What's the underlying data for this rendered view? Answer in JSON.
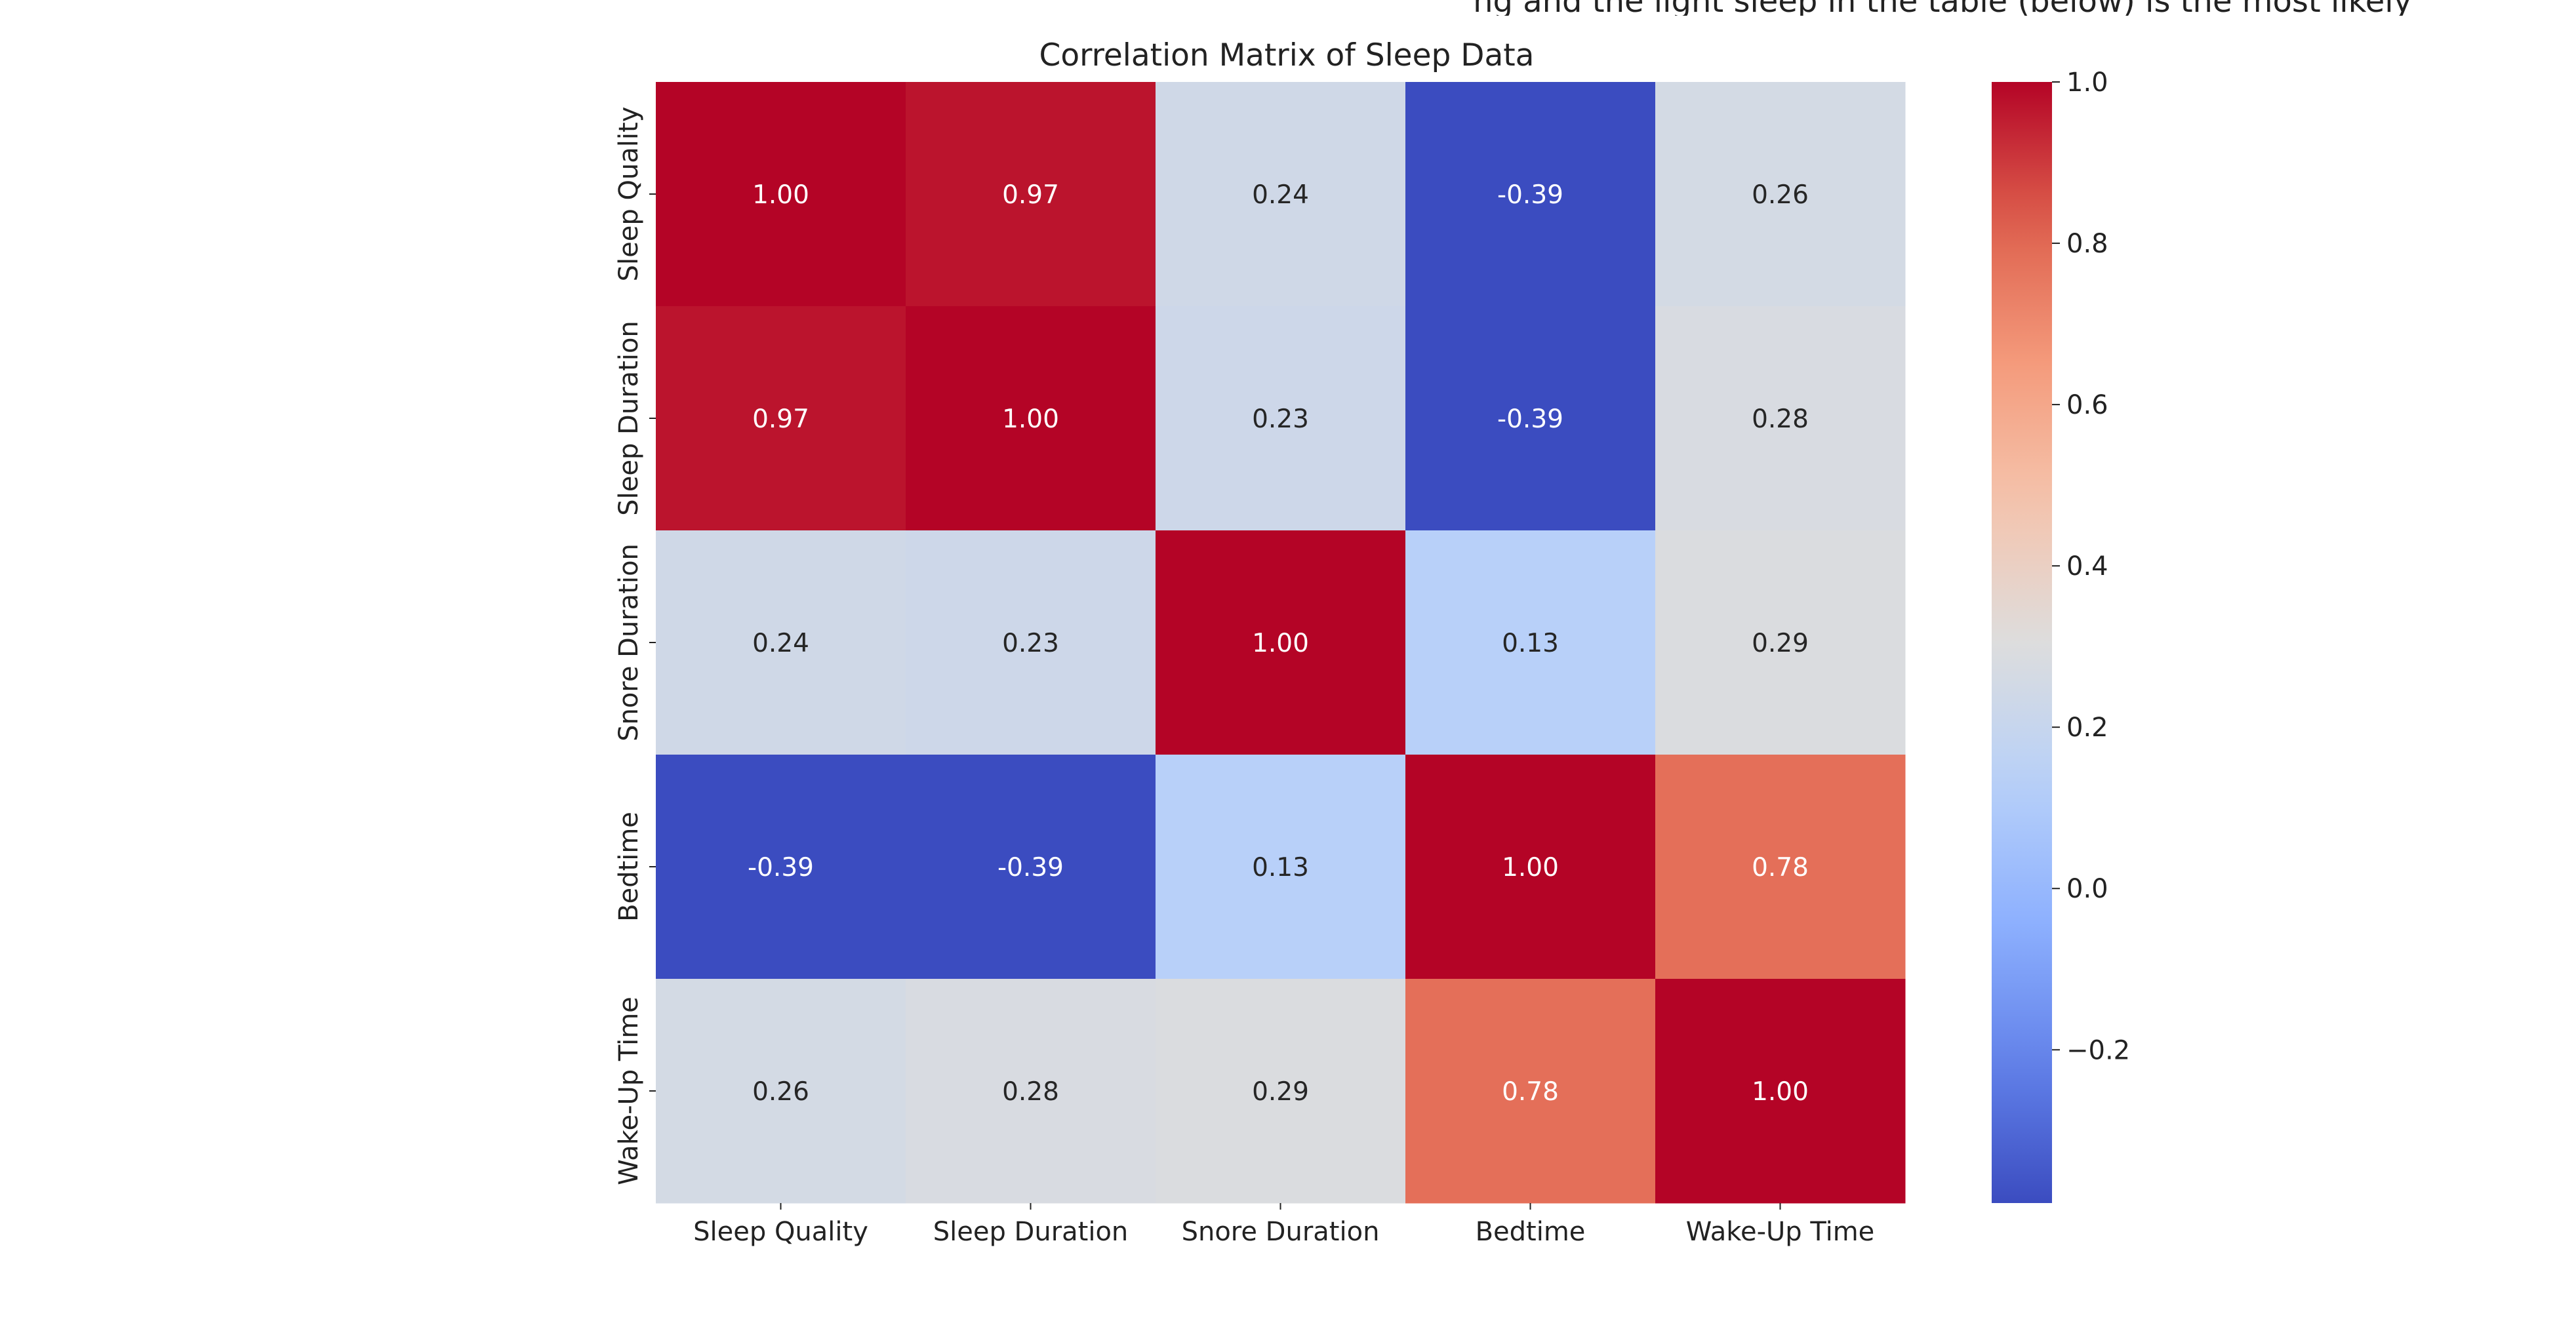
{
  "page_header_fragment": "ng and the light sleep in the table (below) is the most likely",
  "chart_data": {
    "type": "heatmap",
    "title": "Correlation Matrix of Sleep Data",
    "xlabel": "",
    "ylabel": "",
    "columns": [
      "Sleep Quality",
      "Sleep Duration",
      "Snore Duration",
      "Bedtime",
      "Wake-Up Time"
    ],
    "rows": [
      "Sleep Quality",
      "Sleep Duration",
      "Snore Duration",
      "Bedtime",
      "Wake-Up Time"
    ],
    "values": [
      [
        1.0,
        0.97,
        0.24,
        -0.39,
        0.26
      ],
      [
        0.97,
        1.0,
        0.23,
        -0.39,
        0.28
      ],
      [
        0.24,
        0.23,
        1.0,
        0.13,
        0.29
      ],
      [
        -0.39,
        -0.39,
        0.13,
        1.0,
        0.78
      ],
      [
        0.26,
        0.28,
        0.29,
        0.78,
        1.0
      ]
    ],
    "annotation_format": "0.00",
    "colormap": "coolwarm",
    "color_range": [
      -0.39,
      1.0
    ],
    "colorbar": {
      "ticks": [
        1.0,
        0.8,
        0.6,
        0.4,
        0.2,
        0.0,
        -0.2
      ],
      "tick_labels": [
        "1.0",
        "0.8",
        "0.6",
        "0.4",
        "0.2",
        "0.0",
        "−0.2"
      ]
    },
    "grid": false,
    "legend": "colorbar-right"
  }
}
